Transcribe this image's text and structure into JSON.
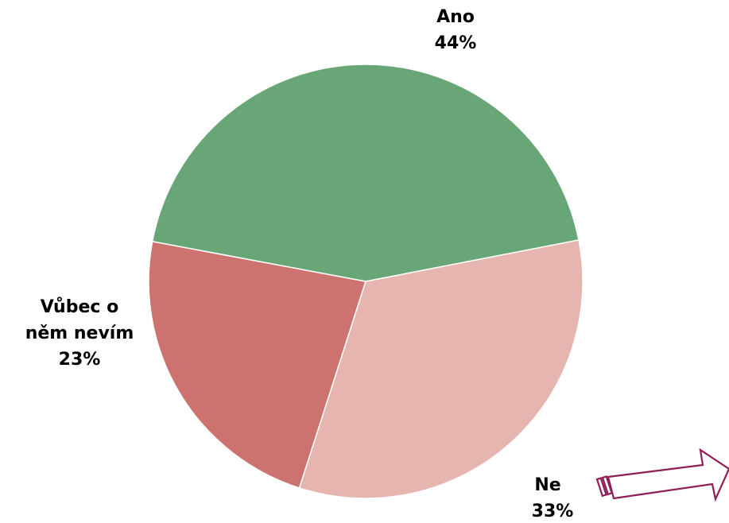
{
  "chart_data": {
    "type": "pie",
    "title": "",
    "slices": [
      {
        "label_lines": [
          "Ano"
        ],
        "value": 44,
        "value_label": "44%",
        "color": "#68a678"
      },
      {
        "label_lines": [
          "Ne"
        ],
        "value": 33,
        "value_label": "33%",
        "color": "#e6b5b0"
      },
      {
        "label_lines": [
          "Vůbec o",
          "něm nevím"
        ],
        "value": 23,
        "value_label": "23%",
        "color": "#cc736f"
      }
    ],
    "legend": "none"
  },
  "decorations": {
    "arrow_icon": "arrow-right-icon",
    "arrow_color": "#8e1f58"
  }
}
